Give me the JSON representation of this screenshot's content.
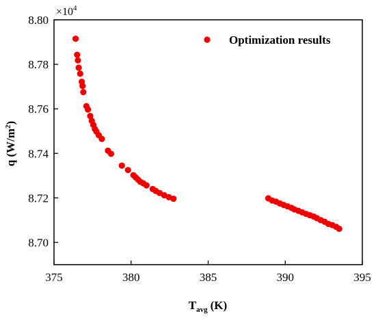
{
  "chart_data": {
    "type": "scatter",
    "title": "",
    "xlabel": {
      "base": "T",
      "sub": "avg",
      "unit": "(K)"
    },
    "ylabel": {
      "base": "q (W/m",
      "sup": "2",
      "end": ")"
    },
    "y_multiplier": {
      "base": "×10",
      "exp": "4"
    },
    "xlim": [
      375,
      395
    ],
    "ylim": [
      8.69,
      8.8
    ],
    "x_ticks": [
      "375",
      "380",
      "385",
      "390",
      "395"
    ],
    "y_ticks": [
      "8.70",
      "8.72",
      "8.74",
      "8.76",
      "8.78",
      "8.80"
    ],
    "legend_position": "top-right",
    "grid": false,
    "series": [
      {
        "name": "Optimization results",
        "color": "#ee0000",
        "x": [
          376.4,
          376.5,
          376.55,
          376.6,
          376.7,
          376.8,
          376.85,
          376.9,
          377.1,
          377.2,
          377.35,
          377.45,
          377.55,
          377.65,
          377.75,
          377.9,
          378.1,
          378.5,
          378.7,
          379.4,
          379.8,
          380.15,
          380.3,
          380.45,
          380.6,
          380.8,
          381.0,
          381.4,
          381.6,
          381.85,
          382.15,
          382.45,
          382.75,
          388.9,
          389.15,
          389.4,
          389.65,
          389.9,
          390.15,
          390.4,
          390.6,
          390.85,
          391.1,
          391.35,
          391.6,
          391.85,
          392.05,
          392.3,
          392.55,
          392.8,
          393.05,
          393.3,
          393.5
        ],
        "y": [
          8.7915,
          8.7843,
          8.7818,
          8.7785,
          8.7758,
          8.7722,
          8.7703,
          8.7675,
          8.7612,
          8.7597,
          8.7568,
          8.7546,
          8.7528,
          8.751,
          8.7498,
          8.7482,
          8.7465,
          8.7412,
          8.7398,
          8.7345,
          8.7325,
          8.7302,
          8.7292,
          8.7282,
          8.7272,
          8.7265,
          8.7256,
          8.724,
          8.7231,
          8.7222,
          8.7212,
          8.7203,
          8.7196,
          8.7198,
          8.7188,
          8.7183,
          8.7175,
          8.7168,
          8.7162,
          8.7155,
          8.7148,
          8.7142,
          8.7135,
          8.7128,
          8.7122,
          8.7116,
          8.7109,
          8.71,
          8.7093,
          8.7083,
          8.7078,
          8.707,
          8.7061
        ]
      }
    ]
  }
}
